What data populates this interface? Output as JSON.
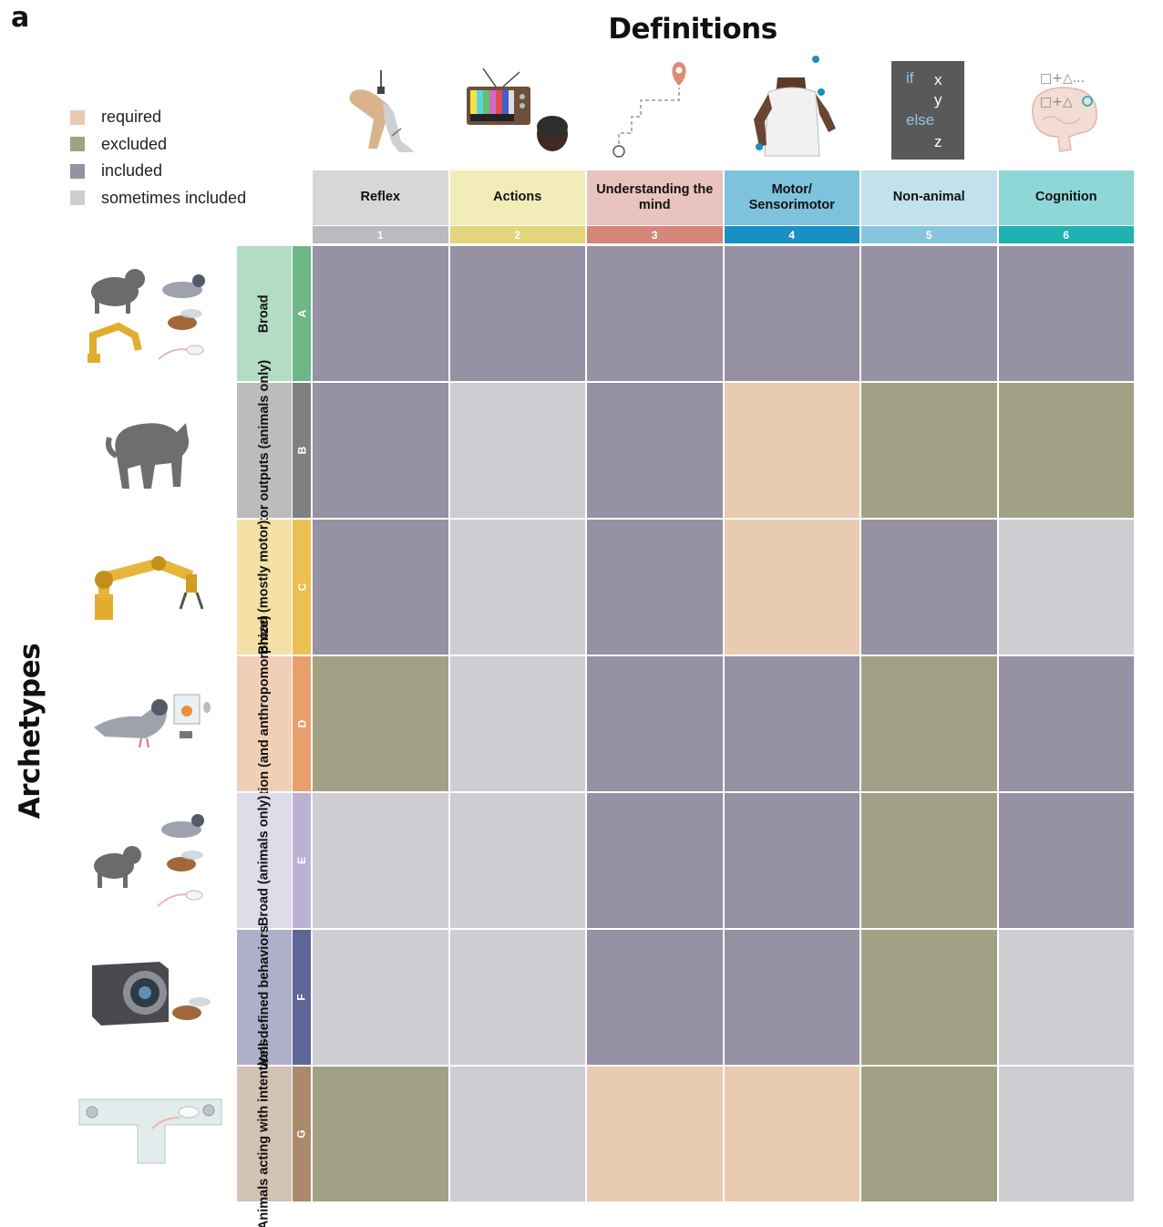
{
  "panel_letter": "a",
  "title": "Definitions",
  "side_title": "Archetypes",
  "legend": [
    {
      "key": "required",
      "label": "required",
      "color": "#e8cbb0"
    },
    {
      "key": "excluded",
      "label": "excluded",
      "color": "#a2a185"
    },
    {
      "key": "included",
      "label": "included",
      "color": "#9691a3"
    },
    {
      "key": "sometimes",
      "label": "sometimes included",
      "color": "#cdcdd2"
    }
  ],
  "columns": [
    {
      "label": "Reflex",
      "number": "1",
      "header_color": "#d7d7d9",
      "number_color": "#b9bbbf",
      "icon": "knee-reflex-icon"
    },
    {
      "label": "Actions",
      "number": "2",
      "header_color": "#f2ecb8",
      "number_color": "#e3d57a",
      "icon": "television-viewer-icon"
    },
    {
      "label": "Understanding the mind",
      "number": "3",
      "header_color": "#e9c3bd",
      "number_color": "#d5867b",
      "icon": "path-to-goal-icon"
    },
    {
      "label": "Motor/ Sensorimotor",
      "number": "4",
      "header_color": "#7ec3dc",
      "number_color": "#1a8fc1",
      "icon": "person-reaching-icon"
    },
    {
      "label": "Non-animal",
      "number": "5",
      "header_color": "#c2e1ec",
      "number_color": "#86c5dc",
      "icon": "if-else-code-icon"
    },
    {
      "label": "Cognition",
      "number": "6",
      "header_color": "#8fd7d7",
      "number_color": "#22b1b3",
      "icon": "brain-symbols-icon"
    }
  ],
  "code_icon": {
    "lines": [
      [
        "if",
        "x"
      ],
      [
        "",
        "y"
      ],
      [
        "else",
        ""
      ],
      [
        "",
        "z"
      ]
    ]
  },
  "brain_icon": {
    "line1": "□+△...",
    "line2": "□+△"
  },
  "rows": [
    {
      "letter": "A",
      "label": "Broad",
      "label_color": "#b2dcc3",
      "letter_color": "#6db686",
      "icon": "animals-and-robot-icon",
      "cells": [
        "included",
        "included",
        "included",
        "included",
        "included",
        "included"
      ]
    },
    {
      "letter": "B",
      "label": "Motor outputs (animals only)",
      "label_color": "#bcbcbc",
      "letter_color": "#7f817f",
      "icon": "cat-icon",
      "cells": [
        "included",
        "sometimes",
        "included",
        "required",
        "excluded",
        "excluded"
      ]
    },
    {
      "letter": "C",
      "label": "Broad (mostly motor)",
      "label_color": "#f5e0a6",
      "letter_color": "#ecbf55",
      "icon": "robot-arm-icon",
      "cells": [
        "included",
        "sometimes",
        "included",
        "required",
        "included",
        "sometimes"
      ]
    },
    {
      "letter": "D",
      "label": "Cognition (and anthropomorphize)",
      "label_color": "#f1cfb6",
      "letter_color": "#e89f6c",
      "icon": "pigeon-screen-icon",
      "cells": [
        "excluded",
        "sometimes",
        "included",
        "included",
        "excluded",
        "included"
      ]
    },
    {
      "letter": "E",
      "label": "Broad (animals only)",
      "label_color": "#dfdbe8",
      "letter_color": "#bcb1d2",
      "icon": "cat-pigeon-fly-mouse-icon",
      "cells": [
        "sometimes",
        "sometimes",
        "included",
        "included",
        "excluded",
        "included"
      ]
    },
    {
      "letter": "F",
      "label": "Well-defined behaviors",
      "label_color": "#aeb0cb",
      "letter_color": "#5d6697",
      "icon": "camera-fly-icon",
      "cells": [
        "sometimes",
        "sometimes",
        "included",
        "included",
        "excluded",
        "sometimes"
      ]
    },
    {
      "letter": "G",
      "label": "Animals acting with intentions",
      "label_color": "#d3c3b5",
      "letter_color": "#ab8a6c",
      "icon": "t-maze-mouse-icon",
      "cells": [
        "excluded",
        "sometimes",
        "required",
        "required",
        "excluded",
        "sometimes"
      ]
    }
  ]
}
